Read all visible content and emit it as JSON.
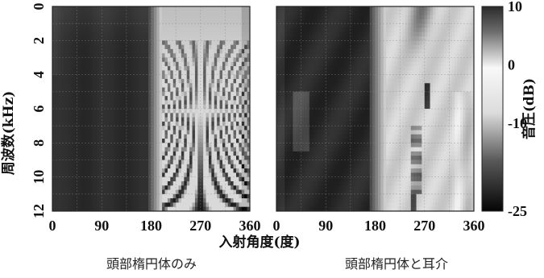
{
  "chart_data": [
    {
      "type": "heatmap",
      "caption": "頭部楕円体のみ",
      "x": [
        0,
        90,
        180,
        270,
        360
      ],
      "xlim": [
        0,
        360
      ],
      "y": [
        0,
        2,
        4,
        6,
        8,
        10,
        12
      ],
      "ylim": [
        0,
        12
      ],
      "xlabel": "入射角度(度)",
      "ylabel": "周波数(kHz)",
      "grid": true
    },
    {
      "type": "heatmap",
      "caption": "頭部楕円体と耳介",
      "x": [
        0,
        90,
        180,
        270,
        360
      ],
      "xlim": [
        0,
        360
      ],
      "y": [
        0,
        2,
        4,
        6,
        8,
        10,
        12
      ],
      "ylim": [
        0,
        12
      ],
      "xlabel": "入射角度(度)",
      "ylabel": "周波数(kHz)",
      "grid": true
    }
  ],
  "colorbar": {
    "label": "音圧(dB)",
    "ticks": [
      "10",
      "0",
      "-10",
      "-25"
    ],
    "values": [
      10,
      0,
      -10,
      -25
    ],
    "range": [
      -25,
      10
    ]
  },
  "colors": {
    "low": "#000000",
    "high": "#ffffff",
    "frame": "#222222"
  }
}
